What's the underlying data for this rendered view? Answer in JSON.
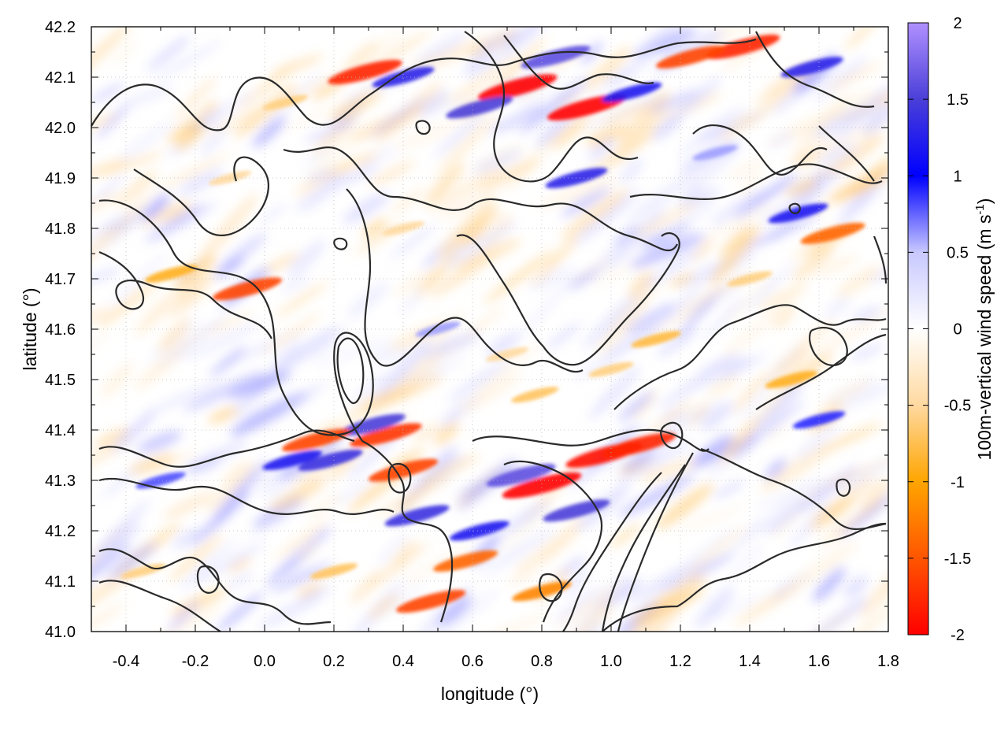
{
  "chart_data": {
    "type": "heatmap",
    "title": "",
    "xlabel": "longitude (°)",
    "ylabel": "latitude (°)",
    "xlim": [
      -0.5,
      1.8
    ],
    "ylim": [
      41.0,
      42.2
    ],
    "x_ticks": [
      -0.4,
      -0.2,
      0.0,
      0.2,
      0.4,
      0.6,
      0.8,
      1.0,
      1.2,
      1.4,
      1.6,
      1.8
    ],
    "x_tick_labels": [
      "-0.4",
      "-0.2",
      "0.0",
      "0.2",
      "0.4",
      "0.6",
      "0.8",
      "1.0",
      "1.2",
      "1.4",
      "1.6",
      "1.8"
    ],
    "y_ticks": [
      41.0,
      41.1,
      41.2,
      41.3,
      41.4,
      41.5,
      41.6,
      41.7,
      41.8,
      41.9,
      42.0,
      42.1,
      42.2
    ],
    "y_tick_labels": [
      "41.0",
      "41.1",
      "41.2",
      "41.3",
      "41.4",
      "41.5",
      "41.6",
      "41.7",
      "41.8",
      "41.9",
      "42.0",
      "42.1",
      "42.2"
    ],
    "grid": true,
    "colorbar": {
      "label_main": "100m-vertical wind speed (m s",
      "label_sup": "-1",
      "label_close": ")",
      "range": [
        -2,
        2
      ],
      "ticks": [
        2,
        1.5,
        1,
        0.5,
        0,
        -0.5,
        -1,
        -1.5,
        -2
      ],
      "tick_labels": [
        "2",
        "1.5",
        "1",
        "0.5",
        "0",
        "-0.5",
        "-1",
        "-1.5",
        "-2"
      ],
      "colors": [
        "#ff0000",
        "#ff8c00",
        "#ffa500",
        "#ffd9a0",
        "#ffffff",
        "#c8c8ff",
        "#0000ff",
        "#4040e0",
        "#b090ff"
      ]
    },
    "features": [
      {
        "lon": 0.73,
        "lat": 42.08,
        "w": -2.0
      },
      {
        "lon": 0.93,
        "lat": 42.04,
        "w": -2.0
      },
      {
        "lon": 0.29,
        "lat": 42.11,
        "w": -1.8
      },
      {
        "lon": 1.38,
        "lat": 42.16,
        "w": -1.8
      },
      {
        "lon": 1.23,
        "lat": 42.14,
        "w": -1.6
      },
      {
        "lon": 0.84,
        "lat": 42.14,
        "w": 1.6
      },
      {
        "lon": 0.62,
        "lat": 42.04,
        "w": 1.5
      },
      {
        "lon": 0.4,
        "lat": 42.1,
        "w": 1.3
      },
      {
        "lon": 1.58,
        "lat": 42.12,
        "w": 1.3
      },
      {
        "lon": 1.06,
        "lat": 42.07,
        "w": 1.2
      },
      {
        "lon": -0.05,
        "lat": 41.68,
        "w": -1.6
      },
      {
        "lon": -0.27,
        "lat": 41.71,
        "w": -0.9
      },
      {
        "lon": 1.64,
        "lat": 41.79,
        "w": -1.4
      },
      {
        "lon": 1.54,
        "lat": 41.83,
        "w": 1.2
      },
      {
        "lon": 0.9,
        "lat": 41.9,
        "w": 1.3
      },
      {
        "lon": 1.13,
        "lat": 41.58,
        "w": -0.8
      },
      {
        "lon": 0.78,
        "lat": 41.47,
        "w": -0.7
      },
      {
        "lon": 0.35,
        "lat": 41.39,
        "w": -1.7
      },
      {
        "lon": 0.31,
        "lat": 41.41,
        "w": 1.5
      },
      {
        "lon": 0.15,
        "lat": 41.38,
        "w": -1.6
      },
      {
        "lon": 0.19,
        "lat": 41.34,
        "w": 1.4
      },
      {
        "lon": 0.4,
        "lat": 41.32,
        "w": -1.6
      },
      {
        "lon": 0.8,
        "lat": 41.29,
        "w": -2.0
      },
      {
        "lon": 0.74,
        "lat": 41.31,
        "w": 1.6
      },
      {
        "lon": 0.98,
        "lat": 41.35,
        "w": -1.9
      },
      {
        "lon": 1.08,
        "lat": 41.37,
        "w": -1.8
      },
      {
        "lon": 0.9,
        "lat": 41.24,
        "w": 1.5
      },
      {
        "lon": 0.58,
        "lat": 41.14,
        "w": -1.4
      },
      {
        "lon": 0.48,
        "lat": 41.06,
        "w": -1.6
      },
      {
        "lon": 0.44,
        "lat": 41.23,
        "w": 1.4
      },
      {
        "lon": 0.62,
        "lat": 41.2,
        "w": 1.2
      },
      {
        "lon": 0.8,
        "lat": 41.08,
        "w": -1.2
      },
      {
        "lon": 0.08,
        "lat": 41.34,
        "w": 1.2
      },
      {
        "lon": -0.3,
        "lat": 41.3,
        "w": 0.8
      },
      {
        "lon": -0.35,
        "lat": 41.12,
        "w": -0.6
      },
      {
        "lon": 0.2,
        "lat": 41.12,
        "w": -0.7
      },
      {
        "lon": 1.6,
        "lat": 41.42,
        "w": 0.9
      },
      {
        "lon": 1.52,
        "lat": 41.5,
        "w": -0.9
      },
      {
        "lon": 1.4,
        "lat": 41.7,
        "w": -0.6
      },
      {
        "lon": 0.5,
        "lat": 41.6,
        "w": 0.6
      },
      {
        "lon": 0.4,
        "lat": 41.8,
        "w": -0.5
      },
      {
        "lon": -0.1,
        "lat": 41.9,
        "w": -0.5
      },
      {
        "lon": 1.3,
        "lat": 41.95,
        "w": 0.6
      },
      {
        "lon": 0.06,
        "lat": 42.05,
        "w": -0.6
      },
      {
        "lon": 0.7,
        "lat": 41.55,
        "w": -0.5
      },
      {
        "lon": 1.0,
        "lat": 41.52,
        "w": -0.6
      }
    ]
  }
}
